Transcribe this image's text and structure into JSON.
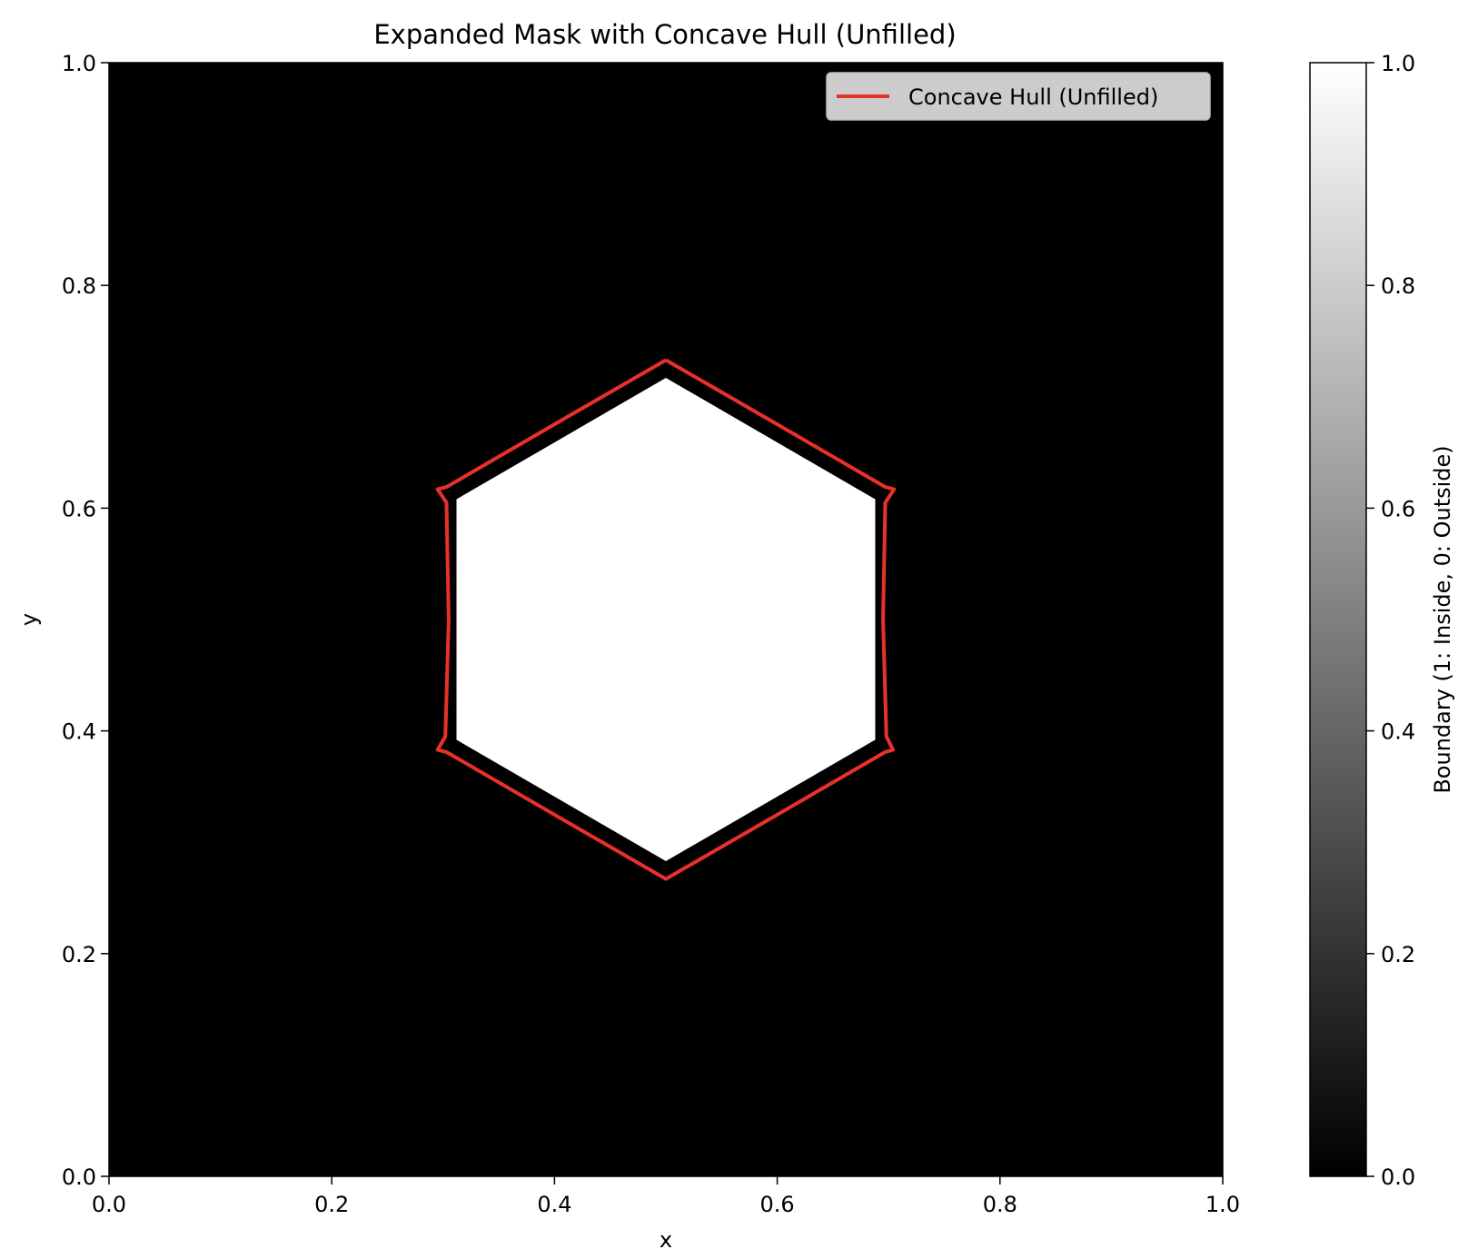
{
  "chart_data": {
    "type": "heatmap",
    "title": "Expanded Mask with Concave Hull (Unfilled)",
    "xlabel": "x",
    "ylabel": "y",
    "xlim": [
      0.0,
      1.0
    ],
    "ylim": [
      0.0,
      1.0
    ],
    "x_ticks": [
      "0.0",
      "0.2",
      "0.4",
      "0.6",
      "0.8",
      "1.0"
    ],
    "y_ticks": [
      "0.0",
      "0.2",
      "0.4",
      "0.6",
      "0.8",
      "1.0"
    ],
    "grid": false,
    "colormap": "gray",
    "background_value": 0,
    "mask_inside_value": 1,
    "mask_region": {
      "shape": "hexagon",
      "vertices": [
        [
          0.5,
          0.717
        ],
        [
          0.688,
          0.608
        ],
        [
          0.688,
          0.392
        ],
        [
          0.5,
          0.283
        ],
        [
          0.312,
          0.392
        ],
        [
          0.312,
          0.608
        ]
      ]
    },
    "colorbar": {
      "label": "Boundary (1: Inside, 0: Outside)",
      "range": [
        0.0,
        1.0
      ],
      "ticks": [
        "0.0",
        "0.2",
        "0.4",
        "0.6",
        "0.8",
        "1.0"
      ]
    },
    "series": [
      {
        "name": "Concave Hull (Unfilled)",
        "color": "#e8312a",
        "type": "line",
        "points": [
          [
            0.5,
            0.733
          ],
          [
            0.597,
            0.677
          ],
          [
            0.697,
            0.619
          ],
          [
            0.705,
            0.617
          ],
          [
            0.697,
            0.605
          ],
          [
            0.695,
            0.5
          ],
          [
            0.698,
            0.395
          ],
          [
            0.704,
            0.383
          ],
          [
            0.697,
            0.381
          ],
          [
            0.597,
            0.323
          ],
          [
            0.5,
            0.267
          ],
          [
            0.403,
            0.323
          ],
          [
            0.303,
            0.381
          ],
          [
            0.295,
            0.383
          ],
          [
            0.302,
            0.395
          ],
          [
            0.305,
            0.5
          ],
          [
            0.303,
            0.605
          ],
          [
            0.295,
            0.617
          ],
          [
            0.303,
            0.619
          ],
          [
            0.403,
            0.677
          ],
          [
            0.5,
            0.733
          ]
        ]
      }
    ],
    "legend": {
      "placement": "top-right"
    }
  }
}
